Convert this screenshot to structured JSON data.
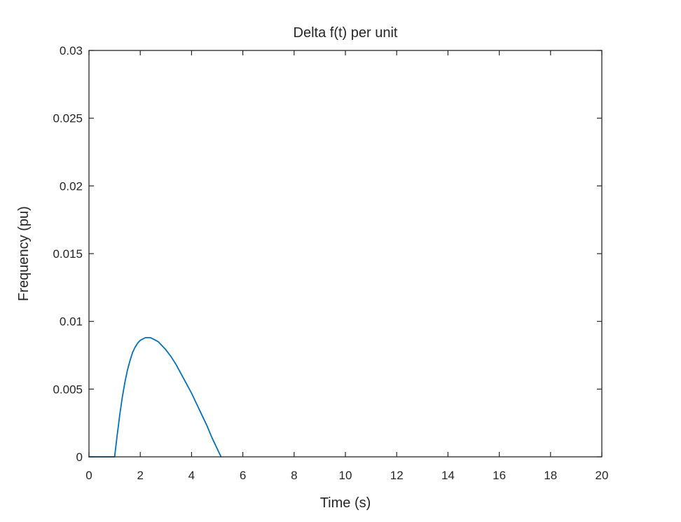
{
  "chart_data": {
    "type": "line",
    "title": "Delta f(t) per unit",
    "xlabel": "Time (s)",
    "ylabel": "Frequency (pu)",
    "xlim": [
      0,
      20
    ],
    "ylim": [
      0,
      0.03
    ],
    "xticks": [
      0,
      2,
      4,
      6,
      8,
      10,
      12,
      14,
      16,
      18,
      20
    ],
    "xtick_labels": [
      "0",
      "2",
      "4",
      "6",
      "8",
      "10",
      "12",
      "14",
      "16",
      "18",
      "20"
    ],
    "yticks": [
      0,
      0.005,
      0.01,
      0.015,
      0.02,
      0.025,
      0.03
    ],
    "ytick_labels": [
      "0",
      "0.005",
      "0.01",
      "0.015",
      "0.02",
      "0.025",
      "0.03"
    ],
    "grid": false,
    "box": true,
    "series": [
      {
        "color": "#0072BD",
        "x": [
          0,
          0.5,
          1.0,
          1.1,
          1.2,
          1.3,
          1.4,
          1.5,
          1.6,
          1.7,
          1.8,
          1.9,
          2.0,
          2.1,
          2.2,
          2.3,
          2.4,
          2.5,
          2.6,
          2.7,
          2.8,
          2.9,
          3.0,
          3.2,
          3.4,
          3.6,
          3.8,
          4.0,
          4.2,
          4.4,
          4.6,
          4.8,
          5.0,
          5.15
        ],
        "y": [
          0,
          0,
          0,
          0.0016,
          0.0031,
          0.0044,
          0.0055,
          0.0064,
          0.0071,
          0.0077,
          0.0081,
          0.0084,
          0.0086,
          0.0087,
          0.0088,
          0.0088,
          0.0088,
          0.0087,
          0.0086,
          0.0085,
          0.0083,
          0.0081,
          0.0079,
          0.0074,
          0.0068,
          0.0061,
          0.0054,
          0.0047,
          0.0039,
          0.0031,
          0.0023,
          0.0014,
          0.0006,
          0
        ]
      }
    ]
  }
}
